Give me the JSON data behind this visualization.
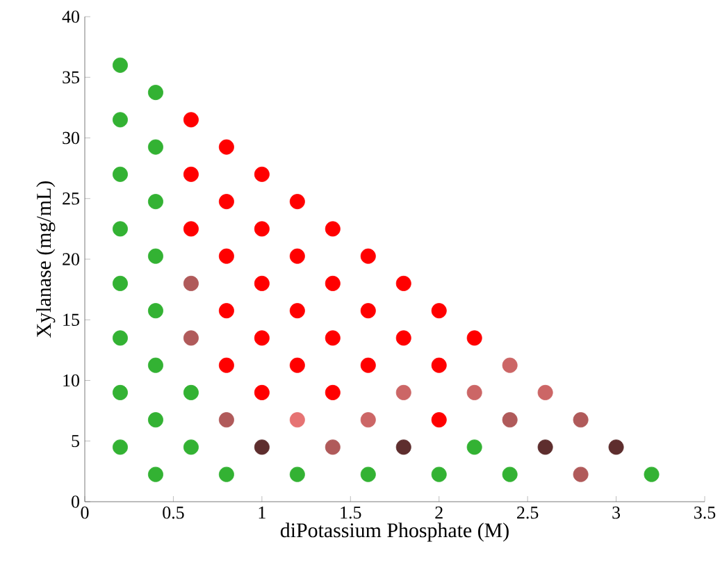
{
  "chart_data": {
    "type": "scatter",
    "xlabel": "diPotassium Phosphate (M)",
    "ylabel": "Xylanase (mg/mL)",
    "xlim": [
      0,
      3.5
    ],
    "ylim": [
      0,
      40
    ],
    "xticks": [
      0,
      0.5,
      1,
      1.5,
      2,
      2.5,
      3,
      3.5
    ],
    "yticks": [
      0,
      5,
      10,
      15,
      20,
      25,
      30,
      35,
      40
    ],
    "marker": "circle",
    "grid": false,
    "legend": false,
    "x": [
      0.2,
      0.2,
      0.2,
      0.2,
      0.2,
      0.2,
      0.2,
      0.2,
      0.4,
      0.4,
      0.4,
      0.4,
      0.4,
      0.4,
      0.4,
      0.4,
      0.6,
      0.6,
      0.6,
      0.6,
      0.6,
      0.6,
      0.6,
      0.8,
      0.8,
      0.8,
      0.8,
      0.8,
      0.8,
      0.8,
      1.0,
      1.0,
      1.0,
      1.0,
      1.0,
      1.0,
      1.2,
      1.2,
      1.2,
      1.2,
      1.2,
      1.2,
      1.4,
      1.4,
      1.4,
      1.4,
      1.4,
      1.6,
      1.6,
      1.6,
      1.6,
      1.6,
      1.8,
      1.8,
      1.8,
      1.8,
      2.0,
      2.0,
      2.0,
      2.0,
      2.2,
      2.2,
      2.2,
      2.4,
      2.4,
      2.4,
      2.6,
      2.6,
      2.8,
      2.8,
      3.0,
      3.2
    ],
    "values": [
      36,
      31.5,
      27,
      22.5,
      18,
      13.5,
      9,
      4.5,
      33.75,
      29.25,
      24.75,
      20.25,
      15.75,
      11.25,
      6.75,
      2.25,
      31.5,
      27,
      22.5,
      18,
      13.5,
      9,
      4.5,
      29.25,
      24.75,
      20.25,
      15.75,
      11.25,
      6.75,
      2.25,
      27,
      22.5,
      18,
      13.5,
      9,
      4.5,
      24.75,
      20.25,
      15.75,
      11.25,
      6.75,
      2.25,
      22.5,
      18,
      13.5,
      9,
      4.5,
      20.25,
      15.75,
      11.25,
      6.75,
      2.25,
      18,
      13.5,
      9,
      4.5,
      15.75,
      11.25,
      6.75,
      2.25,
      13.5,
      9,
      4.5,
      11.25,
      6.75,
      2.25,
      9,
      4.5,
      6.75,
      2.25,
      4.5,
      2.25
    ],
    "colors": [
      "#33b233",
      "#33b233",
      "#33b233",
      "#33b233",
      "#33b233",
      "#33b233",
      "#33b233",
      "#33b233",
      "#33b233",
      "#33b233",
      "#33b233",
      "#33b233",
      "#33b233",
      "#33b233",
      "#33b233",
      "#33b233",
      "#ff0000",
      "#ff0000",
      "#ff0000",
      "#b05a5a",
      "#b05a5a",
      "#33b233",
      "#33b233",
      "#ff0000",
      "#ff0000",
      "#ff0000",
      "#ff0000",
      "#ff0000",
      "#b05a5a",
      "#33b233",
      "#ff0000",
      "#ff0000",
      "#ff0000",
      "#ff0000",
      "#ff0000",
      "#5e2e2e",
      "#ff0000",
      "#ff0000",
      "#ff0000",
      "#ff0000",
      "#e67373",
      "#33b233",
      "#ff0000",
      "#ff0000",
      "#ff0000",
      "#ff0000",
      "#b05a5a",
      "#ff0000",
      "#ff0000",
      "#ff0000",
      "#cc6666",
      "#33b233",
      "#ff0000",
      "#ff0000",
      "#cc6666",
      "#5e2e2e",
      "#ff0000",
      "#ff0000",
      "#ff0000",
      "#33b233",
      "#ff0000",
      "#cc6666",
      "#33b233",
      "#cc6666",
      "#b05a5a",
      "#33b233",
      "#cc6666",
      "#5e2e2e",
      "#b05a5a",
      "#b05a5a",
      "#5e2e2e",
      "#33b233"
    ]
  }
}
